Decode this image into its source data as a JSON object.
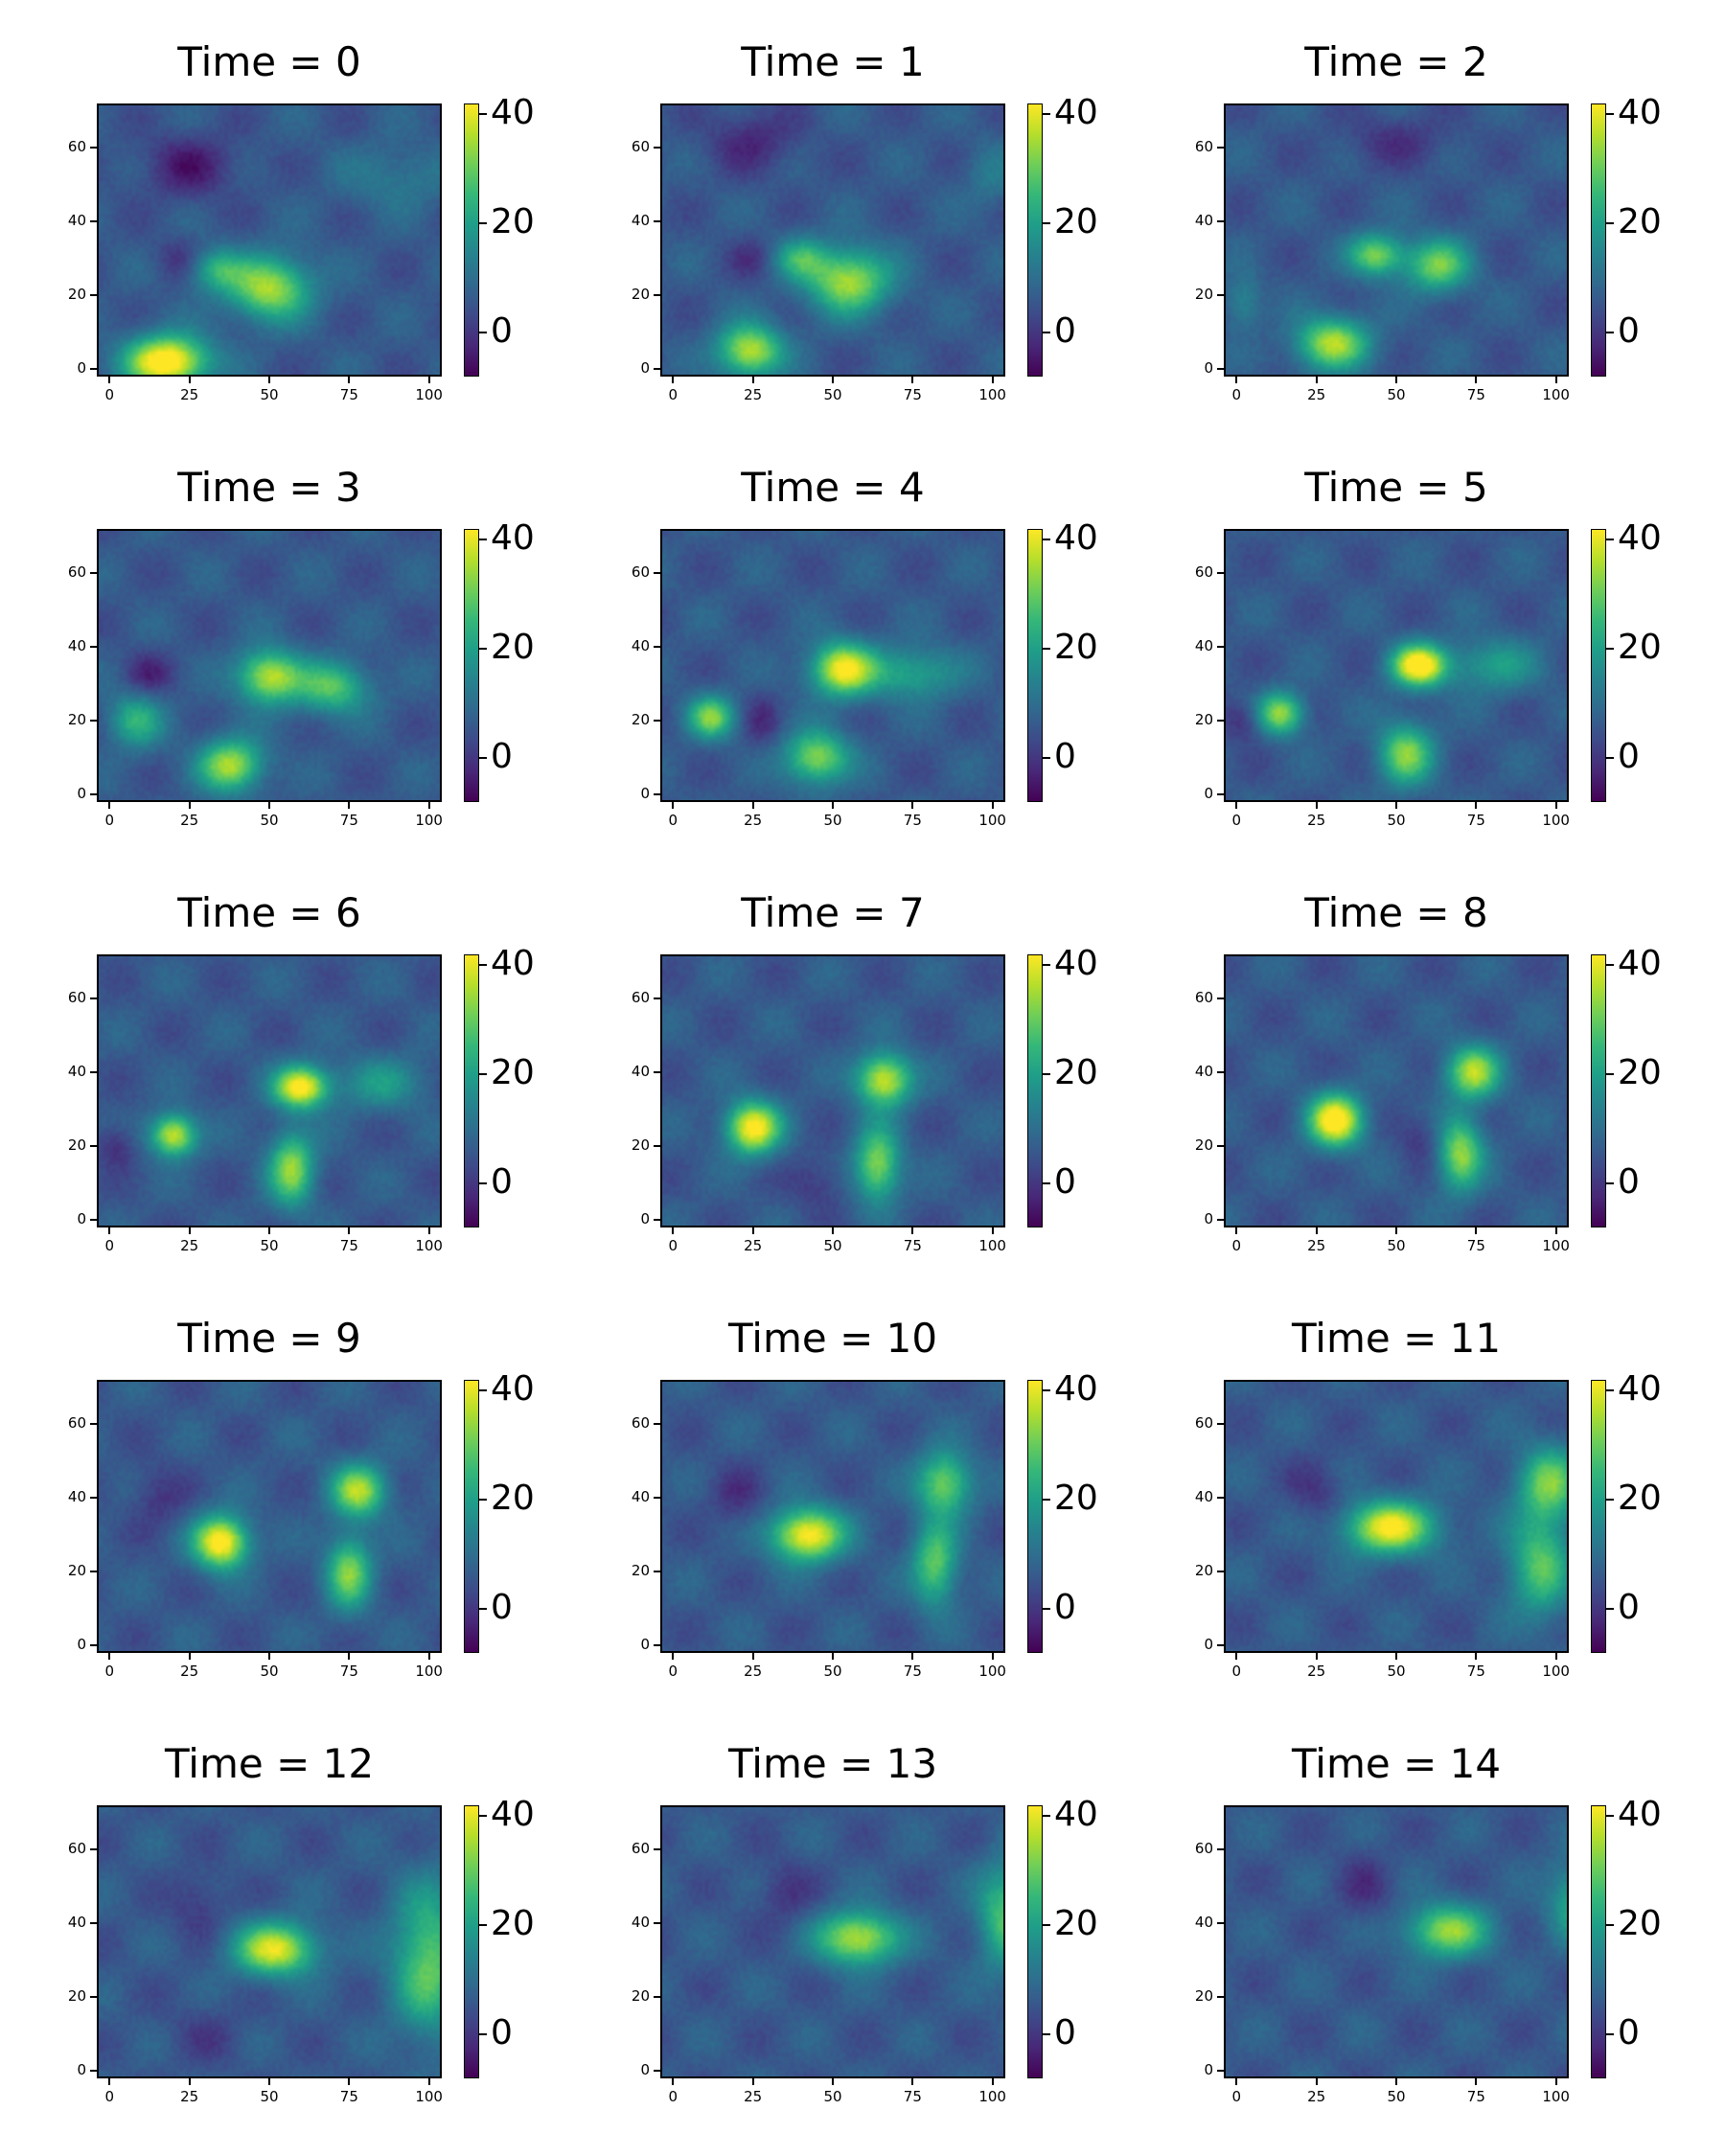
{
  "chart_data": {
    "type": "heatmap",
    "layout": "5x3 grid of panels",
    "colormap": "viridis",
    "color_range": [
      -8,
      42
    ],
    "colorbar_ticks": [
      0,
      20,
      40
    ],
    "x_ticks": [
      0,
      25,
      50,
      75,
      100
    ],
    "y_ticks": [
      0,
      20,
      40,
      60
    ],
    "xlim": [
      -4,
      104
    ],
    "ylim": [
      -2,
      72
    ],
    "grid": false,
    "panels": [
      {
        "title": "Time = 0",
        "blobs": [
          {
            "x": 18,
            "y": 2,
            "amp": 42,
            "sx": 9,
            "sy": 5
          },
          {
            "x": 50,
            "y": 22,
            "amp": 30,
            "sx": 9,
            "sy": 6
          },
          {
            "x": 33,
            "y": 27,
            "amp": 16,
            "sx": 6,
            "sy": 4
          },
          {
            "x": 90,
            "y": 52,
            "amp": 7,
            "sx": 12,
            "sy": 6
          },
          {
            "x": 25,
            "y": 55,
            "amp": -10,
            "sx": 10,
            "sy": 6
          },
          {
            "x": 22,
            "y": 30,
            "amp": -6,
            "sx": 5,
            "sy": 4
          }
        ]
      },
      {
        "title": "Time = 1",
        "blobs": [
          {
            "x": 24,
            "y": 5,
            "amp": 32,
            "sx": 7,
            "sy": 5
          },
          {
            "x": 55,
            "y": 24,
            "amp": 30,
            "sx": 9,
            "sy": 6
          },
          {
            "x": 40,
            "y": 30,
            "amp": 16,
            "sx": 6,
            "sy": 4
          },
          {
            "x": 100,
            "y": 52,
            "amp": 6,
            "sx": 6,
            "sy": 6
          },
          {
            "x": 25,
            "y": 62,
            "amp": -8,
            "sx": 10,
            "sy": 6
          },
          {
            "x": 25,
            "y": 30,
            "amp": -6,
            "sx": 5,
            "sy": 4
          }
        ]
      },
      {
        "title": "Time = 2",
        "blobs": [
          {
            "x": 30,
            "y": 7,
            "amp": 30,
            "sx": 8,
            "sy": 5
          },
          {
            "x": 44,
            "y": 31,
            "amp": 26,
            "sx": 6,
            "sy": 4
          },
          {
            "x": 63,
            "y": 28,
            "amp": 25,
            "sx": 7,
            "sy": 5
          },
          {
            "x": 2,
            "y": 18,
            "amp": 10,
            "sx": 4,
            "sy": 5
          },
          {
            "x": 50,
            "y": 62,
            "amp": -6,
            "sx": 12,
            "sy": 5
          }
        ]
      },
      {
        "title": "Time = 3",
        "blobs": [
          {
            "x": 38,
            "y": 8,
            "amp": 30,
            "sx": 7,
            "sy": 5
          },
          {
            "x": 50,
            "y": 32,
            "amp": 32,
            "sx": 7,
            "sy": 5
          },
          {
            "x": 70,
            "y": 29,
            "amp": 22,
            "sx": 8,
            "sy": 5
          },
          {
            "x": 8,
            "y": 20,
            "amp": 18,
            "sx": 6,
            "sy": 5
          },
          {
            "x": 12,
            "y": 33,
            "amp": -8,
            "sx": 5,
            "sy": 4
          }
        ]
      },
      {
        "title": "Time = 4",
        "blobs": [
          {
            "x": 45,
            "y": 10,
            "amp": 28,
            "sx": 7,
            "sy": 5
          },
          {
            "x": 53,
            "y": 34,
            "amp": 36,
            "sx": 7,
            "sy": 5
          },
          {
            "x": 75,
            "y": 33,
            "amp": 16,
            "sx": 10,
            "sy": 5
          },
          {
            "x": 12,
            "y": 21,
            "amp": 26,
            "sx": 5,
            "sy": 4
          },
          {
            "x": 28,
            "y": 20,
            "amp": -6,
            "sx": 4,
            "sy": 5
          }
        ]
      },
      {
        "title": "Time = 5",
        "blobs": [
          {
            "x": 53,
            "y": 11,
            "amp": 26,
            "sx": 6,
            "sy": 6
          },
          {
            "x": 57,
            "y": 35,
            "amp": 40,
            "sx": 6,
            "sy": 4
          },
          {
            "x": 80,
            "y": 35,
            "amp": 14,
            "sx": 10,
            "sy": 5
          },
          {
            "x": 14,
            "y": 22,
            "amp": 28,
            "sx": 5,
            "sy": 4
          },
          {
            "x": 2,
            "y": 20,
            "amp": -8,
            "sx": 4,
            "sy": 4
          }
        ]
      },
      {
        "title": "Time = 6",
        "blobs": [
          {
            "x": 57,
            "y": 14,
            "amp": 28,
            "sx": 5,
            "sy": 7
          },
          {
            "x": 60,
            "y": 36,
            "amp": 38,
            "sx": 6,
            "sy": 4
          },
          {
            "x": 85,
            "y": 37,
            "amp": 12,
            "sx": 10,
            "sy": 5
          },
          {
            "x": 20,
            "y": 23,
            "amp": 34,
            "sx": 5,
            "sy": 4
          },
          {
            "x": 2,
            "y": 20,
            "amp": -8,
            "sx": 4,
            "sy": 4
          }
        ]
      },
      {
        "title": "Time = 7",
        "blobs": [
          {
            "x": 64,
            "y": 15,
            "amp": 28,
            "sx": 5,
            "sy": 7
          },
          {
            "x": 66,
            "y": 38,
            "amp": 34,
            "sx": 6,
            "sy": 5
          },
          {
            "x": 25,
            "y": 25,
            "amp": 38,
            "sx": 6,
            "sy": 5
          },
          {
            "x": 45,
            "y": 10,
            "amp": -6,
            "sx": 6,
            "sy": 5
          }
        ]
      },
      {
        "title": "Time = 8",
        "blobs": [
          {
            "x": 70,
            "y": 18,
            "amp": 28,
            "sx": 5,
            "sy": 7
          },
          {
            "x": 74,
            "y": 40,
            "amp": 30,
            "sx": 6,
            "sy": 5
          },
          {
            "x": 31,
            "y": 27,
            "amp": 40,
            "sx": 6,
            "sy": 5
          },
          {
            "x": 58,
            "y": 22,
            "amp": -6,
            "sx": 5,
            "sy": 5
          }
        ]
      },
      {
        "title": "Time = 9",
        "blobs": [
          {
            "x": 75,
            "y": 20,
            "amp": 26,
            "sx": 5,
            "sy": 7
          },
          {
            "x": 78,
            "y": 42,
            "amp": 30,
            "sx": 6,
            "sy": 5
          },
          {
            "x": 35,
            "y": 28,
            "amp": 40,
            "sx": 6,
            "sy": 5
          },
          {
            "x": 15,
            "y": 40,
            "amp": -6,
            "sx": 6,
            "sy": 6
          }
        ]
      },
      {
        "title": "Time = 10",
        "blobs": [
          {
            "x": 82,
            "y": 22,
            "amp": 24,
            "sx": 5,
            "sy": 8
          },
          {
            "x": 85,
            "y": 44,
            "amp": 26,
            "sx": 6,
            "sy": 6
          },
          {
            "x": 42,
            "y": 30,
            "amp": 38,
            "sx": 8,
            "sy": 5
          },
          {
            "x": 20,
            "y": 40,
            "amp": -6,
            "sx": 6,
            "sy": 6
          }
        ]
      },
      {
        "title": "Time = 11",
        "blobs": [
          {
            "x": 95,
            "y": 22,
            "amp": 22,
            "sx": 7,
            "sy": 10
          },
          {
            "x": 98,
            "y": 44,
            "amp": 24,
            "sx": 7,
            "sy": 7
          },
          {
            "x": 48,
            "y": 32,
            "amp": 36,
            "sx": 10,
            "sy": 5
          },
          {
            "x": 25,
            "y": 42,
            "amp": -6,
            "sx": 6,
            "sy": 6
          }
        ]
      },
      {
        "title": "Time = 12",
        "blobs": [
          {
            "x": 100,
            "y": 30,
            "amp": 24,
            "sx": 8,
            "sy": 14
          },
          {
            "x": 52,
            "y": 33,
            "amp": 34,
            "sx": 9,
            "sy": 5
          },
          {
            "x": 28,
            "y": 45,
            "amp": -6,
            "sx": 6,
            "sy": 6
          },
          {
            "x": 30,
            "y": 10,
            "amp": -4,
            "sx": 8,
            "sy": 6
          }
        ]
      },
      {
        "title": "Time = 13",
        "blobs": [
          {
            "x": 104,
            "y": 42,
            "amp": 22,
            "sx": 6,
            "sy": 10
          },
          {
            "x": 58,
            "y": 36,
            "amp": 32,
            "sx": 9,
            "sy": 5
          },
          {
            "x": 35,
            "y": 48,
            "amp": -6,
            "sx": 6,
            "sy": 6
          }
        ]
      },
      {
        "title": "Time = 14",
        "blobs": [
          {
            "x": 106,
            "y": 46,
            "amp": 16,
            "sx": 6,
            "sy": 8
          },
          {
            "x": 66,
            "y": 38,
            "amp": 28,
            "sx": 9,
            "sy": 5
          },
          {
            "x": 40,
            "y": 50,
            "amp": -6,
            "sx": 6,
            "sy": 6
          }
        ]
      }
    ]
  }
}
